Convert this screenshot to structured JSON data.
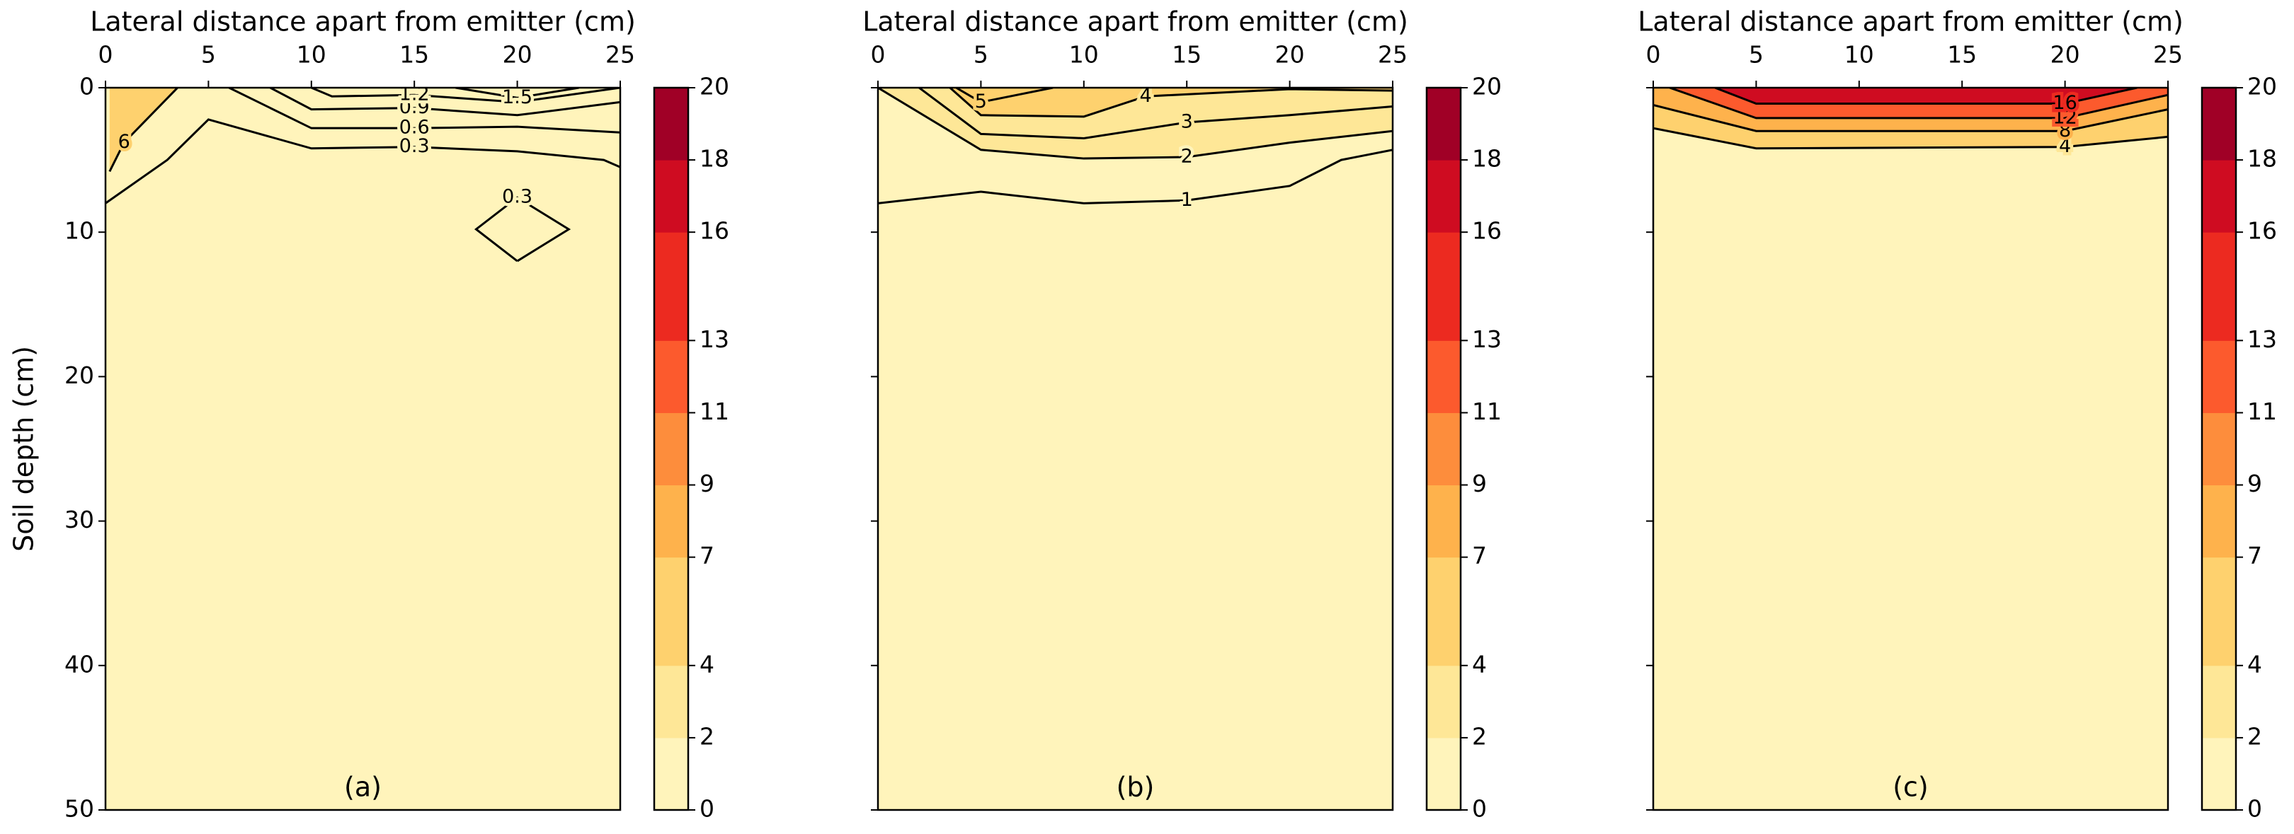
{
  "chart_data": [
    {
      "type": "contour",
      "xlabel": "Lateral distance apart from emitter (cm)",
      "ylabel": "Soil depth (cm)",
      "panel_label": "(a)",
      "xlim": [
        0,
        25
      ],
      "xticks": [
        0,
        5,
        10,
        15,
        20,
        25
      ],
      "ylim": [
        50,
        0
      ],
      "yticks": [
        0,
        10,
        20,
        30,
        40,
        50
      ],
      "ytick_labels": true,
      "colorbar": {
        "levels": [
          0,
          2,
          4,
          7,
          9,
          11,
          13,
          16,
          18,
          20
        ],
        "colors": [
          "#fff4bb",
          "#fee797",
          "#fed16e",
          "#feb24c",
          "#fd8d3c",
          "#fc5a2d",
          "#ec2a20",
          "#cf0c21",
          "#a00026"
        ]
      },
      "contours": [
        {
          "level": 0.3,
          "x": [
            0,
            3,
            5,
            10,
            15,
            20,
            24.2,
            25
          ],
          "y": [
            8,
            5,
            2.2,
            4.2,
            4.1,
            4.4,
            5,
            5.5
          ]
        },
        {
          "level": 6,
          "x": [
            0.2,
            0.9,
            3.5
          ],
          "y": [
            5.8,
            3.8,
            0
          ]
        },
        {
          "level": 0.6,
          "x": [
            6,
            10,
            15,
            20,
            25
          ],
          "y": [
            0,
            2.8,
            2.8,
            2.7,
            3.1
          ]
        },
        {
          "level": 0.9,
          "x": [
            8,
            10,
            15,
            20,
            25
          ],
          "y": [
            0,
            1.5,
            1.4,
            1.9,
            1.0
          ]
        },
        {
          "level": 1.2,
          "x": [
            10,
            11,
            15,
            20,
            25
          ],
          "y": [
            0,
            0.6,
            0.5,
            1.0,
            0
          ]
        },
        {
          "level": 1.5,
          "x": [
            17,
            20,
            23
          ],
          "y": [
            0,
            0.7,
            0
          ]
        },
        {
          "level": 0.3,
          "x": [
            20,
            18,
            20,
            22.5,
            20
          ],
          "y": [
            12,
            9.8,
            7.6,
            9.8,
            12
          ]
        }
      ]
    },
    {
      "type": "contour",
      "xlabel": "Lateral distance apart from emitter (cm)",
      "panel_label": "(b)",
      "xlim": [
        0,
        25
      ],
      "xticks": [
        0,
        5,
        10,
        15,
        20,
        25
      ],
      "ylim": [
        50,
        0
      ],
      "yticks": [
        0,
        10,
        20,
        30,
        40,
        50
      ],
      "ytick_labels": false,
      "colorbar": {
        "levels": [
          0,
          2,
          4,
          7,
          9,
          11,
          13,
          16,
          18,
          20
        ],
        "colors": [
          "#fff4bb",
          "#fee797",
          "#fed16e",
          "#feb24c",
          "#fd8d3c",
          "#fc5a2d",
          "#ec2a20",
          "#cf0c21",
          "#a00026"
        ]
      },
      "contours": [
        {
          "level": 1,
          "x": [
            0,
            5,
            10,
            15,
            20,
            22.5,
            25
          ],
          "y": [
            8,
            7.2,
            8,
            7.8,
            6.8,
            5,
            4.3
          ]
        },
        {
          "level": 2,
          "x": [
            0,
            5,
            10,
            15,
            20,
            25
          ],
          "y": [
            0,
            4.3,
            4.9,
            4.8,
            3.8,
            3
          ]
        },
        {
          "level": 3,
          "x": [
            2,
            5,
            10,
            15,
            20,
            25
          ],
          "y": [
            0,
            3.2,
            3.5,
            2.4,
            1.9,
            1.3
          ]
        },
        {
          "level": 4,
          "x": [
            3.5,
            5,
            10,
            13,
            20,
            25
          ],
          "y": [
            0,
            1.9,
            2,
            0.6,
            0.1,
            0.2
          ]
        },
        {
          "level": 5,
          "x": [
            3.8,
            5,
            8.5
          ],
          "y": [
            0,
            1,
            0
          ]
        }
      ]
    },
    {
      "type": "contour",
      "xlabel": "Lateral distance apart from emitter (cm)",
      "panel_label": "(c)",
      "xlim": [
        0,
        25
      ],
      "xticks": [
        0,
        5,
        10,
        15,
        20,
        25
      ],
      "ylim": [
        50,
        0
      ],
      "yticks": [
        0,
        10,
        20,
        30,
        40,
        50
      ],
      "ytick_labels": false,
      "colorbar": {
        "levels": [
          0,
          2,
          4,
          7,
          9,
          11,
          13,
          16,
          18,
          20
        ],
        "colors": [
          "#fff4bb",
          "#fee797",
          "#fed16e",
          "#feb24c",
          "#fd8d3c",
          "#fc5a2d",
          "#ec2a20",
          "#cf0c21",
          "#a00026"
        ]
      },
      "contours": [
        {
          "level": 4,
          "x": [
            0,
            5,
            20,
            25
          ],
          "y": [
            2.8,
            4.2,
            4.1,
            3.4
          ]
        },
        {
          "level": 8,
          "x": [
            0,
            5,
            20,
            25
          ],
          "y": [
            1.2,
            3,
            3,
            1.5
          ]
        },
        {
          "level": 12,
          "x": [
            0.8,
            5,
            20,
            25
          ],
          "y": [
            0,
            2.1,
            2.1,
            0.5
          ]
        },
        {
          "level": 16,
          "x": [
            3,
            5,
            20,
            23.5
          ],
          "y": [
            0,
            1.1,
            1.1,
            0
          ]
        }
      ]
    }
  ]
}
